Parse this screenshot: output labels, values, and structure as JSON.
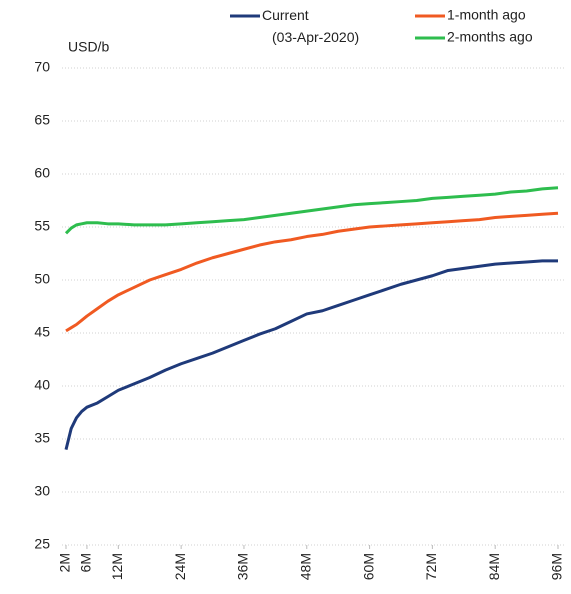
{
  "chart_data": {
    "type": "line",
    "y_label": "USD/b",
    "x": [
      2,
      3,
      4,
      5,
      6,
      8,
      10,
      12,
      15,
      18,
      21,
      24,
      27,
      30,
      33,
      36,
      39,
      42,
      45,
      48,
      51,
      54,
      57,
      60,
      63,
      66,
      69,
      72,
      75,
      78,
      81,
      84,
      87,
      90,
      93,
      96
    ],
    "series": [
      {
        "name": "Current\n(03-Apr-2020)",
        "color": "#1f3a7a",
        "values": [
          34,
          36,
          37,
          37.6,
          38,
          38.4,
          39,
          39.6,
          40.2,
          40.8,
          41.5,
          42.1,
          42.6,
          43.1,
          43.7,
          44.3,
          44.9,
          45.4,
          46.1,
          46.8,
          47.1,
          47.6,
          48.1,
          48.6,
          49.1,
          49.6,
          50,
          50.4,
          50.9,
          51.1,
          51.3,
          51.5,
          51.6,
          51.7,
          51.8,
          51.8
        ]
      },
      {
        "name": "1-month ago",
        "color": "#f05a22",
        "values": [
          45.2,
          45.5,
          45.8,
          46.2,
          46.6,
          47.3,
          48,
          48.6,
          49.3,
          50,
          50.5,
          51,
          51.6,
          52.1,
          52.5,
          52.9,
          53.3,
          53.6,
          53.8,
          54.1,
          54.3,
          54.6,
          54.8,
          55,
          55.1,
          55.2,
          55.3,
          55.4,
          55.5,
          55.6,
          55.7,
          55.9,
          56,
          56.1,
          56.2,
          56.3
        ]
      },
      {
        "name": "2-months ago",
        "color": "#2ebd4e",
        "values": [
          54.4,
          54.9,
          55.2,
          55.3,
          55.4,
          55.4,
          55.3,
          55.3,
          55.2,
          55.2,
          55.2,
          55.3,
          55.4,
          55.5,
          55.6,
          55.7,
          55.9,
          56.1,
          56.3,
          56.5,
          56.7,
          56.9,
          57.1,
          57.2,
          57.3,
          57.4,
          57.5,
          57.7,
          57.8,
          57.9,
          58,
          58.1,
          58.3,
          58.4,
          58.6,
          58.7
        ]
      }
    ],
    "xlim": [
      2,
      96
    ],
    "xticks": [
      {
        "value": 2,
        "label": "2M"
      },
      {
        "value": 6,
        "label": "6M"
      },
      {
        "value": 12,
        "label": "12M"
      },
      {
        "value": 24,
        "label": "24M"
      },
      {
        "value": 36,
        "label": "36M"
      },
      {
        "value": 48,
        "label": "48M"
      },
      {
        "value": 60,
        "label": "60M"
      },
      {
        "value": 72,
        "label": "72M"
      },
      {
        "value": 84,
        "label": "84M"
      },
      {
        "value": 96,
        "label": "96M"
      }
    ],
    "ylim": [
      25,
      70
    ],
    "yticks": [
      25,
      30,
      35,
      40,
      45,
      50,
      55,
      60,
      65,
      70
    ],
    "grid": true,
    "legend": "top"
  }
}
